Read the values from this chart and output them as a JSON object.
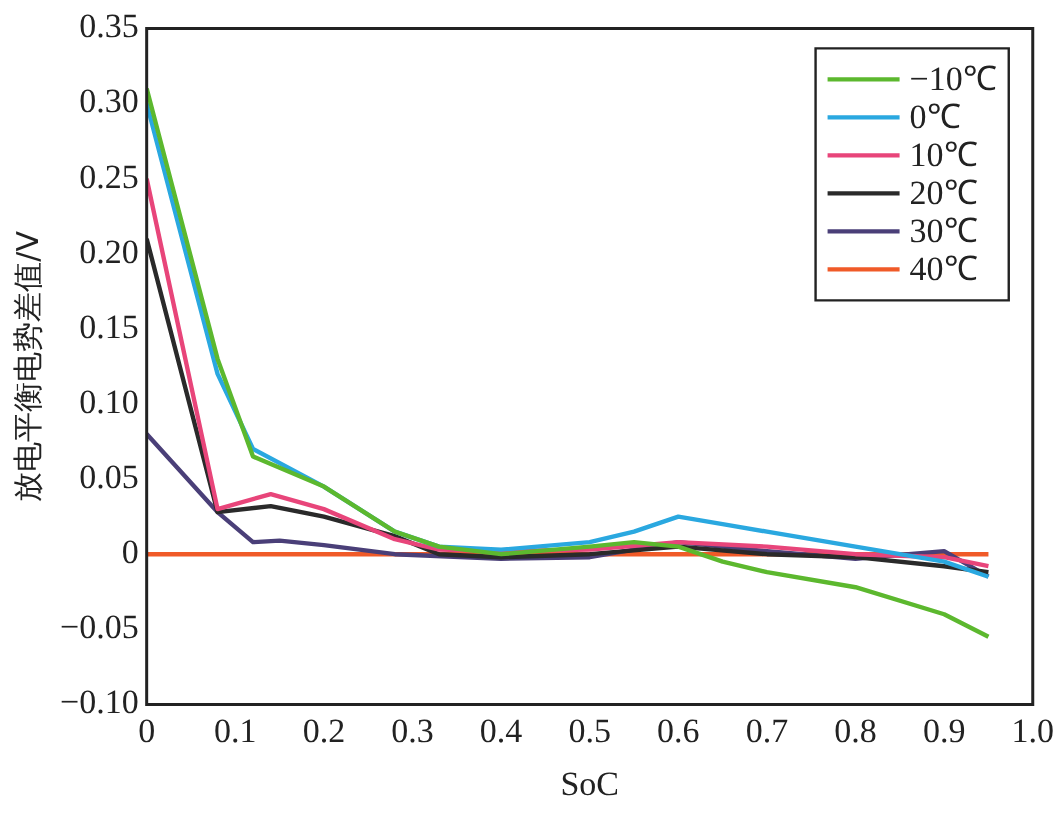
{
  "chart_data": {
    "type": "line",
    "xlabel": "SoC",
    "ylabel": "放电平衡电势差值/V",
    "xlim": [
      0,
      1.0
    ],
    "xticks": [
      0,
      0.1,
      0.2,
      0.3,
      0.4,
      0.5,
      0.6,
      0.7,
      0.8,
      0.9,
      {
        "value": 1.0,
        "label": "1.0"
      }
    ],
    "ylim": [
      -0.1,
      0.35
    ],
    "yticks": [
      {
        "value": -0.1,
        "label": "−0.10"
      },
      {
        "value": -0.05,
        "label": "−0.05"
      },
      0,
      {
        "value": 0.05,
        "label": "0.05"
      },
      {
        "value": 0.1,
        "label": "0.10"
      },
      {
        "value": 0.15,
        "label": "0.15"
      },
      {
        "value": 0.2,
        "label": "0.20"
      },
      {
        "value": 0.25,
        "label": "0.25"
      },
      {
        "value": 0.3,
        "label": "0.30"
      },
      {
        "value": 0.35,
        "label": "0.35"
      }
    ],
    "grid": false,
    "legend": "top right",
    "marker": "none",
    "line_style": "solid",
    "series": [
      {
        "name": "−10℃",
        "color": "#5cb82e",
        "x": [
          0,
          0.08,
          0.12,
          0.2,
          0.28,
          0.33,
          0.4,
          0.5,
          0.55,
          0.6,
          0.65,
          0.7,
          0.8,
          0.9,
          0.95
        ],
        "values": [
          0.31,
          0.13,
          0.065,
          0.045,
          0.015,
          0.005,
          0.0,
          0.005,
          0.008,
          0.005,
          -0.005,
          -0.012,
          -0.022,
          -0.04,
          -0.055
        ]
      },
      {
        "name": "0℃",
        "color": "#2aa8e0",
        "x": [
          0,
          0.08,
          0.12,
          0.2,
          0.28,
          0.33,
          0.4,
          0.5,
          0.55,
          0.6,
          0.65,
          0.7,
          0.8,
          0.9,
          0.95
        ],
        "values": [
          0.3,
          0.12,
          0.07,
          0.045,
          0.015,
          0.005,
          0.003,
          0.008,
          0.015,
          0.025,
          0.02,
          0.015,
          0.005,
          -0.005,
          -0.015
        ]
      },
      {
        "name": "10℃",
        "color": "#e8457a",
        "x": [
          0,
          0.08,
          0.14,
          0.2,
          0.28,
          0.33,
          0.4,
          0.5,
          0.6,
          0.7,
          0.8,
          0.9,
          0.95
        ],
        "values": [
          0.25,
          0.03,
          0.04,
          0.03,
          0.01,
          0.003,
          0.002,
          0.003,
          0.008,
          0.005,
          0.0,
          -0.002,
          -0.008
        ]
      },
      {
        "name": "20℃",
        "color": "#2a2a2a",
        "x": [
          0,
          0.08,
          0.14,
          0.2,
          0.28,
          0.33,
          0.4,
          0.5,
          0.6,
          0.7,
          0.8,
          0.9,
          0.95
        ],
        "values": [
          0.21,
          0.028,
          0.032,
          0.025,
          0.012,
          0.0,
          -0.002,
          0.0,
          0.005,
          0.0,
          -0.002,
          -0.008,
          -0.012
        ]
      },
      {
        "name": "30℃",
        "color": "#4a3f78",
        "x": [
          0,
          0.08,
          0.12,
          0.15,
          0.2,
          0.28,
          0.4,
          0.5,
          0.6,
          0.7,
          0.8,
          0.9,
          0.95
        ],
        "values": [
          0.08,
          0.028,
          0.008,
          0.009,
          0.006,
          0.0,
          -0.003,
          -0.002,
          0.008,
          0.002,
          -0.003,
          0.002,
          -0.015
        ]
      },
      {
        "name": "40℃",
        "color": "#f05a28",
        "x": [
          0,
          0.95
        ],
        "values": [
          0,
          0
        ]
      }
    ]
  }
}
